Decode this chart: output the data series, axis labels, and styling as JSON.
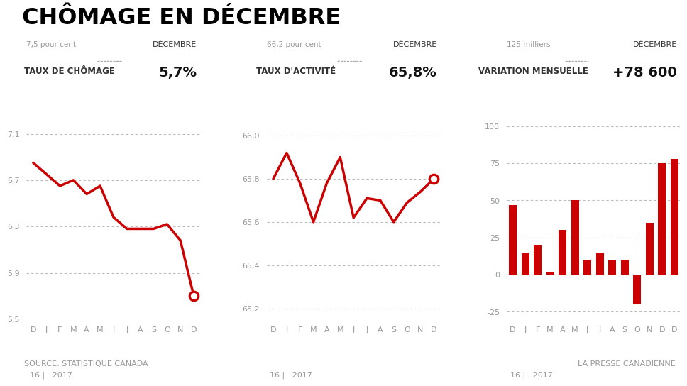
{
  "title": "CHÔMAGE EN DÉCEMBRE",
  "subtitle1": "TAUX DE CHÔMAGE",
  "subtitle2": "TAUX D'ACTIVITÉ",
  "subtitle3": "VARIATION MENSUELLE",
  "months": [
    "D",
    "J",
    "F",
    "M",
    "A",
    "M",
    "J",
    "J",
    "A",
    "S",
    "O",
    "N",
    "D"
  ],
  "year_label": "16 |   2017",
  "chomage_values": [
    6.85,
    6.75,
    6.65,
    6.7,
    6.58,
    6.65,
    6.38,
    6.28,
    6.28,
    6.28,
    6.32,
    6.18,
    5.7
  ],
  "chomage_ylim": [
    5.5,
    7.55
  ],
  "chomage_yticks": [
    5.5,
    5.9,
    6.3,
    6.7,
    7.1
  ],
  "chomage_ytick_labels": [
    "5,5",
    "5,9",
    "6,3",
    "6,7",
    "7,1"
  ],
  "chomage_ref_label": "7,5 pour cent",
  "chomage_dec_label": "DÉCEMBRE",
  "chomage_dec_value": "5,7%",
  "activite_values": [
    65.8,
    65.92,
    65.78,
    65.6,
    65.78,
    65.9,
    65.62,
    65.71,
    65.7,
    65.6,
    65.69,
    65.74,
    65.8
  ],
  "activite_ylim": [
    65.15,
    66.25
  ],
  "activite_yticks": [
    65.2,
    65.4,
    65.6,
    65.8,
    66.0
  ],
  "activite_ytick_labels": [
    "65,2",
    "65,4",
    "65,6",
    "65,8",
    "66,0"
  ],
  "activite_ref_label": "66,2 pour cent",
  "activite_dec_label": "DÉCEMBRE",
  "activite_dec_value": "65,8%",
  "variation_values": [
    47,
    15,
    20,
    2,
    30,
    50,
    10,
    15,
    10,
    10,
    -20,
    35,
    75,
    78
  ],
  "variation_months": [
    "D",
    "J",
    "F",
    "M",
    "A",
    "M",
    "J",
    "J",
    "A",
    "S",
    "O",
    "N",
    "D",
    "D"
  ],
  "variation_ylim": [
    -30,
    130
  ],
  "variation_yticks": [
    -25,
    0,
    25,
    50,
    75,
    100
  ],
  "variation_ytick_labels": [
    "-25",
    "0",
    "25",
    "50",
    "75",
    "100"
  ],
  "variation_ref_label": "125 milliers",
  "variation_dec_label": "DÉCEMBRE",
  "variation_dec_value": "+78 600",
  "bar_color": "#cc0000",
  "line_color": "#cc0000",
  "dot_color": "#cc0000",
  "text_gray": "#999999",
  "text_dark": "#333333",
  "background": "#ffffff",
  "source_text": "SOURCE: STATISTIQUE CANADA",
  "credit_text": "LA PRESSE CANADIENNE"
}
